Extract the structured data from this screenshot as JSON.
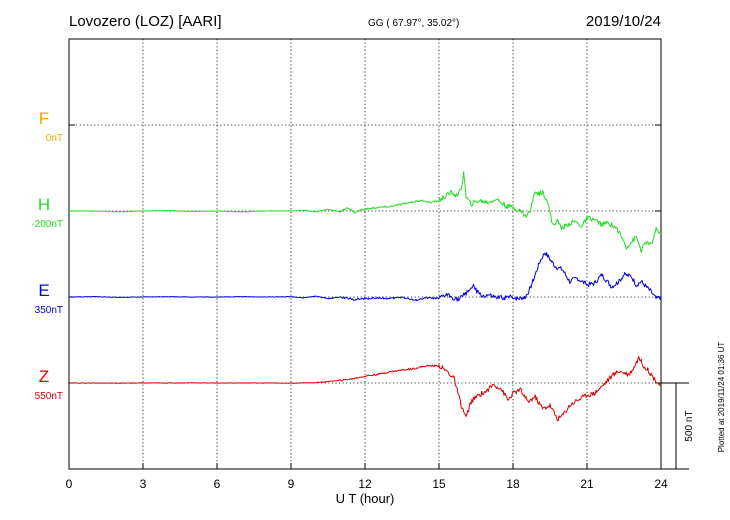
{
  "chart_data": {
    "type": "line",
    "title": "Lovozero (LOZ)  [AARI]",
    "coords": "GG ( 67.97°,  35.02°)",
    "date": "2019/10/24",
    "xlabel": "U T (hour)",
    "xlim": [
      0,
      24
    ],
    "xticks": [
      "0",
      "3",
      "6",
      "9",
      "12",
      "15",
      "18",
      "21",
      "24"
    ],
    "scale_bar_label": "500 nT",
    "scale_bar_nT": 500,
    "plotted_note": "Plotted at 2019/11/24 01:36 UT",
    "grid": true,
    "channels": [
      {
        "name": "F",
        "baseline": "0nT",
        "color": "#f5a300",
        "x": [],
        "values": []
      },
      {
        "name": "H",
        "baseline": "-200nT",
        "color": "#22dd22",
        "x": [
          0,
          1,
          2,
          3,
          4,
          5,
          6,
          7,
          8,
          9,
          9.5,
          10,
          10.5,
          11,
          11.3,
          11.6,
          11.8,
          12,
          12.5,
          13,
          13.5,
          14,
          14.3,
          14.7,
          15,
          15.2,
          15.5,
          15.7,
          15.9,
          16.0,
          16.1,
          16.3,
          16.6,
          17,
          17.3,
          17.7,
          18,
          18.3,
          18.5,
          18.7,
          18.9,
          19.0,
          19.2,
          19.4,
          19.6,
          19.8,
          20,
          20.2,
          20.5,
          20.8,
          21,
          21.3,
          21.6,
          21.8,
          22,
          22.2,
          22.4,
          22.6,
          22.8,
          23,
          23.2,
          23.4,
          23.6,
          23.8,
          24
        ],
        "values": [
          -200,
          -200,
          -205,
          -200,
          -198,
          -202,
          -200,
          -205,
          -200,
          -200,
          -195,
          -205,
          -190,
          -205,
          -180,
          -210,
          -195,
          -190,
          -180,
          -175,
          -160,
          -145,
          -140,
          -150,
          -140,
          -120,
          -90,
          -110,
          -80,
          30,
          -120,
          -160,
          -140,
          -150,
          -130,
          -170,
          -180,
          -200,
          -230,
          -200,
          -80,
          -100,
          -90,
          -140,
          -280,
          -260,
          -300,
          -280,
          -260,
          -290,
          -240,
          -250,
          -280,
          -270,
          -280,
          -300,
          -350,
          -410,
          -380,
          -350,
          -430,
          -380,
          -400,
          -310,
          -330
        ],
        "valuesRef": "H"
      },
      {
        "name": "E",
        "baseline": "350nT",
        "color": "#0000dd",
        "x": [
          0,
          1,
          2,
          3,
          4,
          5,
          6,
          7,
          8,
          9,
          9.5,
          10,
          10.5,
          11,
          11.5,
          12,
          12.5,
          13,
          13.5,
          14,
          14.5,
          15,
          15.3,
          15.6,
          15.8,
          16,
          16.2,
          16.4,
          16.6,
          16.8,
          17,
          17.3,
          17.6,
          18,
          18.2,
          18.5,
          18.7,
          18.9,
          19.1,
          19.3,
          19.5,
          19.7,
          20,
          20.3,
          20.6,
          21,
          21.3,
          21.6,
          22,
          22.3,
          22.5,
          22.8,
          23,
          23.2,
          23.4,
          23.6,
          23.8,
          24
        ],
        "values": [
          350,
          352,
          348,
          350,
          352,
          350,
          350,
          352,
          350,
          352,
          345,
          355,
          340,
          350,
          335,
          340,
          345,
          340,
          350,
          330,
          345,
          340,
          365,
          345,
          335,
          360,
          390,
          410,
          370,
          355,
          360,
          345,
          345,
          350,
          340,
          350,
          400,
          480,
          560,
          610,
          570,
          530,
          510,
          440,
          460,
          420,
          430,
          480,
          410,
          440,
          480,
          470,
          420,
          440,
          410,
          380,
          340,
          350
        ],
        "valuesRef": "E"
      },
      {
        "name": "Z",
        "baseline": "550nT",
        "color": "#dd0000",
        "x": [
          0,
          1,
          2,
          3,
          4,
          5,
          6,
          7,
          8,
          9,
          10,
          11,
          11.5,
          12,
          12.5,
          13,
          13.5,
          14,
          14.5,
          15,
          15.3,
          15.6,
          15.9,
          16.1,
          16.3,
          16.6,
          16.9,
          17.2,
          17.5,
          17.8,
          18,
          18.3,
          18.6,
          18.9,
          19.2,
          19.5,
          19.8,
          20,
          20.3,
          20.6,
          21,
          21.3,
          21.6,
          22,
          22.3,
          22.5,
          22.7,
          22.9,
          23.1,
          23.3,
          23.5,
          23.7,
          24
        ],
        "values": [
          550,
          550,
          549,
          550,
          550,
          551,
          550,
          550,
          550,
          549,
          552,
          565,
          575,
          590,
          600,
          615,
          625,
          635,
          650,
          650,
          620,
          580,
          420,
          350,
          440,
          480,
          500,
          540,
          520,
          450,
          490,
          510,
          440,
          470,
          400,
          420,
          340,
          360,
          420,
          450,
          480,
          490,
          530,
          590,
          620,
          610,
          600,
          640,
          700,
          650,
          620,
          580,
          530
        ],
        "valuesRef": "Z"
      }
    ]
  }
}
